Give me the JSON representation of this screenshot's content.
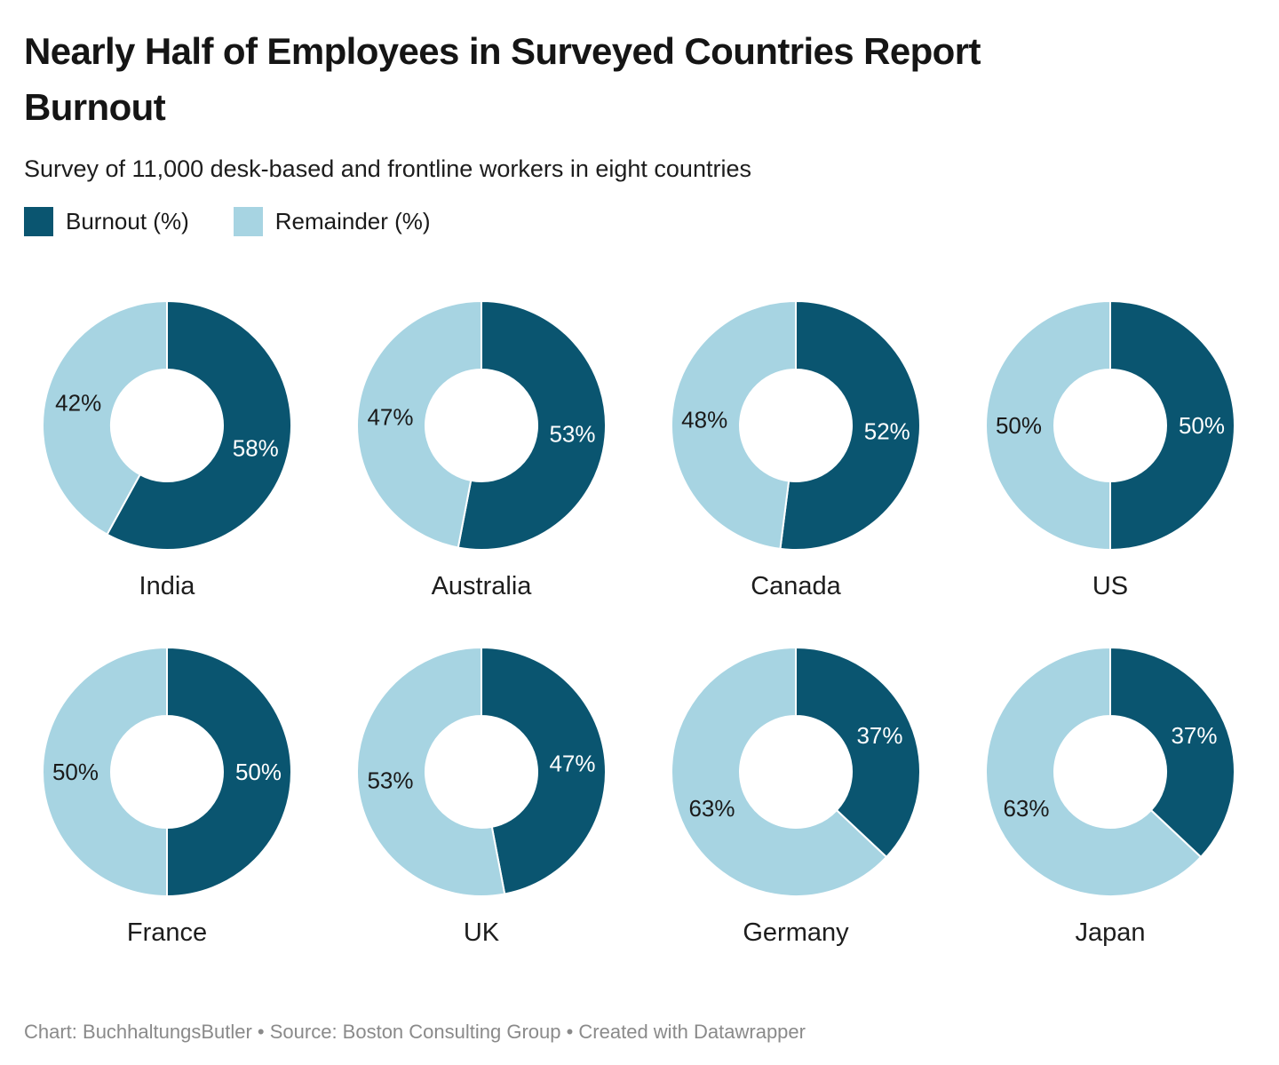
{
  "header": {
    "title_line1": "Nearly Half of Employees in Surveyed Countries Report",
    "title_line2": "Burnout",
    "subtitle": "Survey of 11,000 desk-based and frontline workers in eight countries"
  },
  "chart_data": {
    "type": "pie",
    "variant": "donut-small-multiples",
    "title": "Nearly Half of Employees in Surveyed Countries Report Burnout",
    "subtitle": "Survey of 11,000 desk-based and frontline workers in eight countries",
    "unit": "%",
    "legend": [
      {
        "label": "Burnout (%)",
        "color": "#0a5570"
      },
      {
        "label": "Remainder (%)",
        "color": "#a7d4e2"
      }
    ],
    "colors": {
      "burnout": "#0a5570",
      "remainder": "#a7d4e2",
      "label_on_burnout": "#ffffff",
      "label_on_remainder": "#1a1a1a",
      "slice_separator": "#ffffff"
    },
    "layout": {
      "rows": 2,
      "columns": 4,
      "start_angle_deg": 0,
      "direction": "clockwise",
      "outer_radius": 140,
      "inner_radius": 63,
      "label_radius": 103
    },
    "series": [
      {
        "name": "India",
        "burnout": 58,
        "remainder": 42
      },
      {
        "name": "Australia",
        "burnout": 53,
        "remainder": 47
      },
      {
        "name": "Canada",
        "burnout": 52,
        "remainder": 48
      },
      {
        "name": "US",
        "burnout": 50,
        "remainder": 50
      },
      {
        "name": "France",
        "burnout": 50,
        "remainder": 50
      },
      {
        "name": "UK",
        "burnout": 47,
        "remainder": 53
      },
      {
        "name": "Germany",
        "burnout": 37,
        "remainder": 63
      },
      {
        "name": "Japan",
        "burnout": 37,
        "remainder": 63
      }
    ]
  },
  "footer": {
    "text": "Chart: BuchhaltungsButler • Source: Boston Consulting Group • Created with Datawrapper"
  }
}
